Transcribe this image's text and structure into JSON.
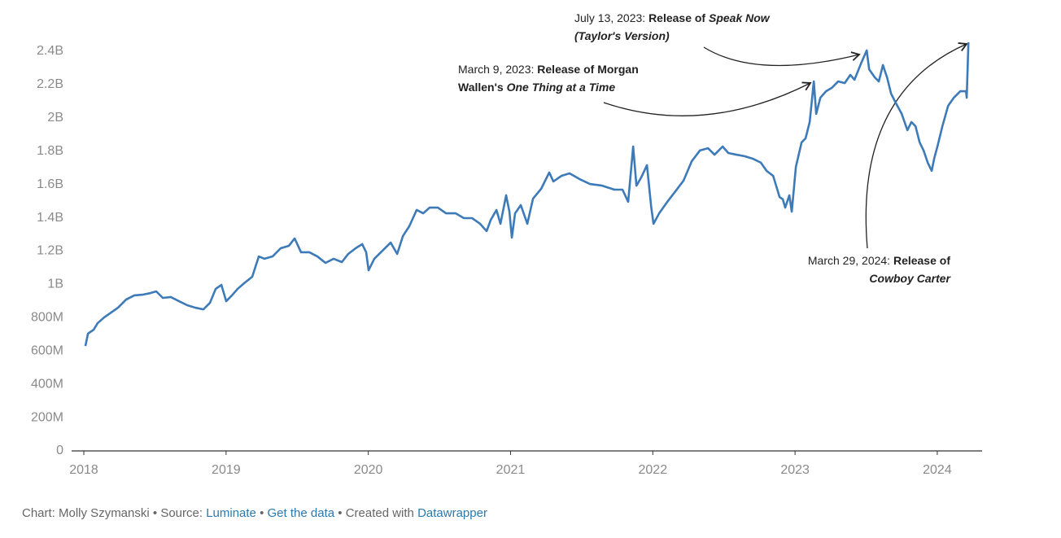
{
  "chart_data": {
    "type": "line",
    "color": "#3d7ab8",
    "grid": false,
    "x": [
      2018.011,
      2018.029,
      2018.069,
      2018.097,
      2018.143,
      2018.183,
      2018.24,
      2018.297,
      2018.355,
      2018.412,
      2018.469,
      2018.509,
      2018.555,
      2018.612,
      2018.669,
      2018.727,
      2018.784,
      2018.841,
      2018.887,
      2018.927,
      2018.967,
      2019.001,
      2019.041,
      2019.081,
      2019.127,
      2019.184,
      2019.23,
      2019.27,
      2019.327,
      2019.384,
      2019.442,
      2019.482,
      2019.527,
      2019.585,
      2019.642,
      2019.699,
      2019.756,
      2019.814,
      2019.859,
      2019.911,
      2019.957,
      2019.985,
      2020.002,
      2020.042,
      2020.1,
      2020.157,
      2020.203,
      2020.243,
      2020.288,
      2020.34,
      2020.386,
      2020.431,
      2020.489,
      2020.546,
      2020.614,
      2020.672,
      2020.729,
      2020.786,
      2020.832,
      2020.861,
      2020.901,
      2020.929,
      2020.969,
      2020.992,
      2021.009,
      2021.032,
      2021.072,
      2021.118,
      2021.158,
      2021.215,
      2021.272,
      2021.301,
      2021.358,
      2021.415,
      2021.484,
      2021.558,
      2021.644,
      2021.73,
      2021.787,
      2021.827,
      2021.862,
      2021.885,
      2021.919,
      2021.959,
      2021.988,
      2022.005,
      2022.045,
      2022.102,
      2022.159,
      2022.216,
      2022.274,
      2022.331,
      2022.388,
      2022.434,
      2022.491,
      2022.531,
      2022.588,
      2022.645,
      2022.703,
      2022.76,
      2022.8,
      2022.846,
      2022.874,
      2022.891,
      2022.914,
      2022.931,
      2022.96,
      2022.977,
      2023.006,
      2023.046,
      2023.074,
      2023.103,
      2023.132,
      2023.149,
      2023.178,
      2023.218,
      2023.258,
      2023.303,
      2023.349,
      2023.389,
      2023.418,
      2023.464,
      2023.504,
      2023.521,
      2023.561,
      2023.589,
      2023.618,
      2023.647,
      2023.675,
      2023.704,
      2023.75,
      2023.79,
      2023.818,
      2023.847,
      2023.876,
      2023.904,
      2023.933,
      2023.961,
      2023.978,
      2024.001,
      2024.036,
      2024.076,
      2024.116,
      2024.162,
      2024.202,
      2024.207,
      2024.219
    ],
    "values": [
      630000000,
      704000000,
      728000000,
      767000000,
      802000000,
      826000000,
      860000000,
      909000000,
      934000000,
      938000000,
      948000000,
      958000000,
      919000000,
      924000000,
      899000000,
      875000000,
      860000000,
      850000000,
      890000000,
      973000000,
      997000000,
      899000000,
      934000000,
      973000000,
      1007000000,
      1046000000,
      1168000000,
      1154000000,
      1168000000,
      1217000000,
      1232000000,
      1276000000,
      1193000000,
      1193000000,
      1168000000,
      1129000000,
      1154000000,
      1134000000,
      1183000000,
      1217000000,
      1242000000,
      1193000000,
      1085000000,
      1154000000,
      1203000000,
      1251000000,
      1183000000,
      1290000000,
      1349000000,
      1447000000,
      1427000000,
      1461000000,
      1461000000,
      1427000000,
      1427000000,
      1398000000,
      1398000000,
      1364000000,
      1320000000,
      1388000000,
      1447000000,
      1364000000,
      1535000000,
      1437000000,
      1281000000,
      1427000000,
      1476000000,
      1364000000,
      1515000000,
      1574000000,
      1672000000,
      1618000000,
      1652000000,
      1667000000,
      1633000000,
      1603000000,
      1593000000,
      1569000000,
      1569000000,
      1496000000,
      1828000000,
      1593000000,
      1643000000,
      1716000000,
      1471000000,
      1364000000,
      1427000000,
      1496000000,
      1559000000,
      1623000000,
      1740000000,
      1804000000,
      1818000000,
      1779000000,
      1828000000,
      1789000000,
      1779000000,
      1770000000,
      1755000000,
      1731000000,
      1682000000,
      1652000000,
      1574000000,
      1525000000,
      1511000000,
      1461000000,
      1535000000,
      1437000000,
      1706000000,
      1853000000,
      1877000000,
      1975000000,
      2219000000,
      2024000000,
      2121000000,
      2160000000,
      2180000000,
      2219000000,
      2209000000,
      2258000000,
      2229000000,
      2327000000,
      2405000000,
      2292000000,
      2243000000,
      2219000000,
      2317000000,
      2243000000,
      2146000000,
      2097000000,
      2024000000,
      1926000000,
      1975000000,
      1950000000,
      1853000000,
      1804000000,
      1731000000,
      1682000000,
      1755000000,
      1828000000,
      1950000000,
      2072000000,
      2121000000,
      2160000000,
      2160000000,
      2121000000,
      2454000000
    ],
    "xlim": [
      2017.914,
      2024.315
    ],
    "xticks": [
      2018,
      2019,
      2020,
      2021,
      2022,
      2023,
      2024
    ],
    "ylim": [
      0,
      2400000000
    ],
    "yticks": [
      0,
      {
        "value": 200000000,
        "label": "200M"
      },
      {
        "value": 400000000,
        "label": "400M"
      },
      {
        "value": 600000000,
        "label": "600M"
      },
      {
        "value": 800000000,
        "label": "800M"
      },
      {
        "value": 1000000000,
        "label": "1B"
      },
      {
        "value": 1200000000,
        "label": "1.2B"
      },
      {
        "value": 1400000000,
        "label": "1.4B"
      },
      {
        "value": 1600000000,
        "label": "1.6B"
      },
      {
        "value": 1800000000,
        "label": "1.8B"
      },
      {
        "value": 2000000000,
        "label": "2B"
      },
      {
        "value": 2200000000,
        "label": "2.2B"
      },
      {
        "value": 2400000000,
        "label": "2.4B"
      }
    ],
    "annotations": [
      {
        "date": "July 13, 2023:",
        "text": "Release of",
        "title": "Speak Now (Taylor's Version)"
      },
      {
        "date": "March 9, 2023:",
        "text": "Release of Morgan Wallen's",
        "title": "One Thing at a Time"
      },
      {
        "date": "March 29, 2024:",
        "text": "Release of",
        "title": "Cowboy Carter"
      }
    ]
  },
  "footer": {
    "credit": "Chart: Molly Szymanski",
    "separator": "•",
    "source_label": "Source:",
    "source": "Luminate",
    "data_link": "Get the data",
    "created_label": "Created with",
    "tool": "Datawrapper"
  }
}
